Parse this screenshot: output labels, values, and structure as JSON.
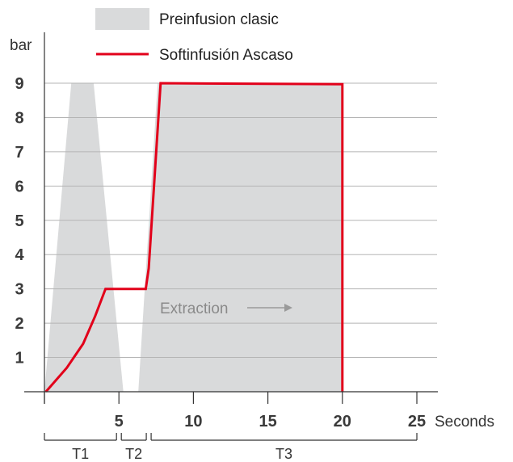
{
  "chart_data": {
    "type": "area",
    "ylabel": "bar",
    "xlabel": "Seconds",
    "xlim": [
      0,
      25
    ],
    "ylim": [
      0,
      9
    ],
    "x_ticks": [
      5,
      10,
      15,
      20,
      25
    ],
    "y_ticks": [
      1,
      2,
      3,
      4,
      5,
      6,
      7,
      8,
      9
    ],
    "grid": "horizontal",
    "legend_position": "top",
    "series": [
      {
        "name": "Preinfusion clasic",
        "kind": "area",
        "color": "#d9dadb",
        "points": [
          [
            0,
            0
          ],
          [
            1.8,
            9
          ],
          [
            3.3,
            9
          ],
          [
            5.3,
            0
          ],
          [
            6.3,
            0
          ],
          [
            7.6,
            9
          ],
          [
            20,
            9
          ],
          [
            20,
            0
          ]
        ]
      },
      {
        "name": "Softinfusión Ascaso",
        "kind": "line",
        "color": "#e2001a",
        "points": [
          [
            0.1,
            0
          ],
          [
            1.5,
            0.7
          ],
          [
            2.6,
            1.4
          ],
          [
            3.4,
            2.2
          ],
          [
            4.1,
            3
          ],
          [
            6.8,
            3
          ],
          [
            7.0,
            3.6
          ],
          [
            7.8,
            9
          ],
          [
            20,
            8.97
          ],
          [
            20,
            0
          ]
        ]
      }
    ],
    "annotations": [
      {
        "text": "Extraction",
        "x": 7.8,
        "y": 2.4,
        "arrow": "right"
      }
    ],
    "phases": [
      {
        "label": "T1",
        "from": 0,
        "to": 5
      },
      {
        "label": "T2",
        "from": 5,
        "to": 7
      },
      {
        "label": "T3",
        "from": 7,
        "to": 25
      }
    ]
  }
}
